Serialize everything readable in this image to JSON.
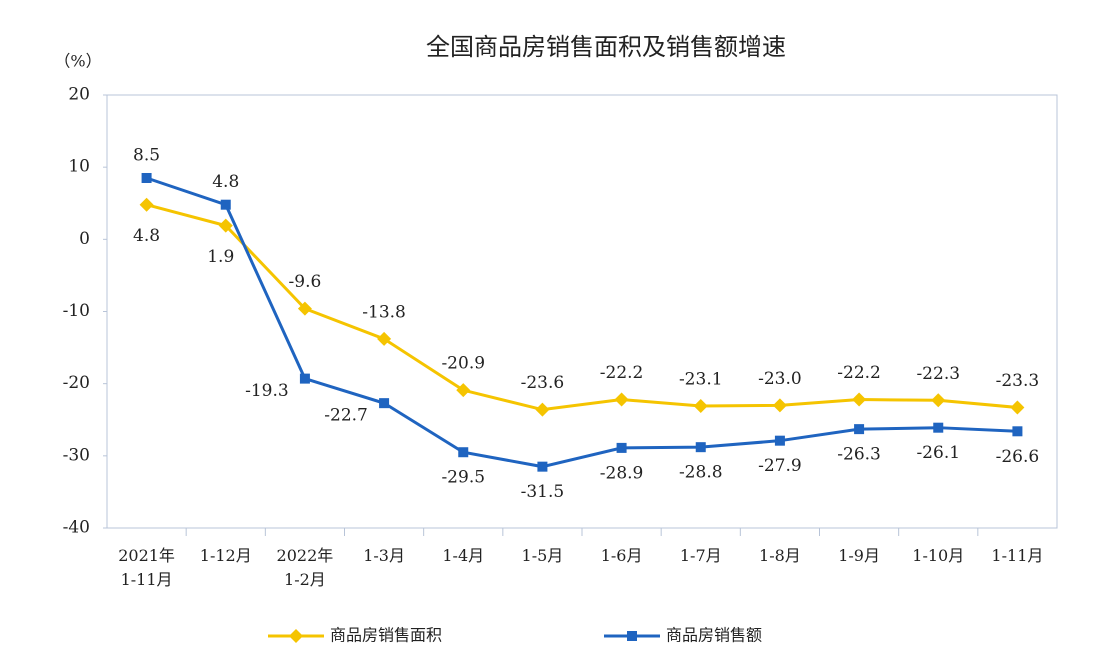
{
  "chart_data": {
    "type": "line",
    "title": "全国商品房销售面积及销售额增速",
    "y_unit": "（%）",
    "categories": [
      "2021年\n1-11月",
      "1-12月",
      "2022年\n1-2月",
      "1-3月",
      "1-4月",
      "1-5月",
      "1-6月",
      "1-7月",
      "1-8月",
      "1-9月",
      "1-10月",
      "1-11月"
    ],
    "series": [
      {
        "name": "商品房销售面积",
        "color": "#f5c400",
        "marker": "diamond",
        "values": [
          4.8,
          1.9,
          -9.6,
          -13.8,
          -20.9,
          -23.6,
          -22.2,
          -23.1,
          -23.0,
          -22.2,
          -22.3,
          -23.3
        ],
        "value_labels": [
          "4.8",
          "1.9",
          "-9.6",
          "-13.8",
          "-20.9",
          "-23.6",
          "-22.2",
          "-23.1",
          "-23.0",
          "-22.2",
          "-22.3",
          "-23.3"
        ]
      },
      {
        "name": "商品房销售额",
        "color": "#1f64c0",
        "marker": "square",
        "values": [
          8.5,
          4.8,
          -19.3,
          -22.7,
          -29.5,
          -31.5,
          -28.9,
          -28.8,
          -27.9,
          -26.3,
          -26.1,
          -26.6
        ],
        "value_labels": [
          "8.5",
          "4.8",
          "-19.3",
          "-22.7",
          "-29.5",
          "-31.5",
          "-28.9",
          "-28.8",
          "-27.9",
          "-26.3",
          "-26.1",
          "-26.6"
        ]
      }
    ],
    "ylim": [
      -40,
      20
    ],
    "yticks": [
      -40,
      -30,
      -20,
      -10,
      0,
      10,
      20
    ],
    "grid": false
  }
}
